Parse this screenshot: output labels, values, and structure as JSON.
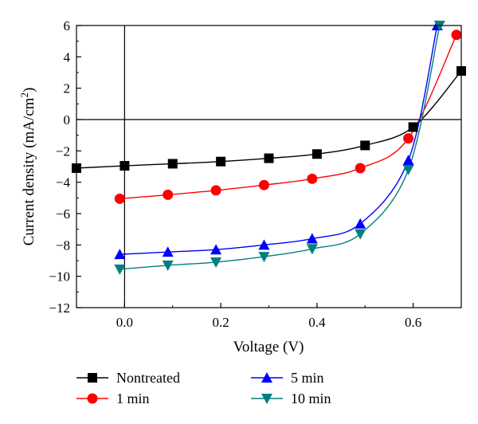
{
  "chart_data": {
    "type": "line",
    "xlabel": "Voltage (V)",
    "ylabel_main": "Current density (mA/cm",
    "ylabel_sup": "2",
    "ylabel_tail": ")",
    "xlim": [
      -0.1,
      0.7
    ],
    "ylim": [
      -12,
      6
    ],
    "xticks": [
      0.0,
      0.2,
      0.4,
      0.6
    ],
    "xtick_labels": [
      "0.0",
      "0.2",
      "0.4",
      "0.6"
    ],
    "yticks": [
      -12,
      -10,
      -8,
      -6,
      -4,
      -2,
      0,
      2,
      4,
      6
    ],
    "ytick_labels": [
      "−12",
      "−10",
      "−8",
      "−6",
      "−4",
      "−2",
      "0",
      "2",
      "4",
      "6"
    ],
    "zero_lines": true,
    "legend_position": "bottom",
    "series": [
      {
        "name": "Nontreated",
        "color": "#000000",
        "marker": "square",
        "x": [
          -0.1,
          0.0,
          0.1,
          0.2,
          0.3,
          0.4,
          0.5,
          0.6,
          0.7
        ],
        "y": [
          -3.1,
          -2.95,
          -2.82,
          -2.68,
          -2.47,
          -2.2,
          -1.65,
          -0.48,
          3.1
        ]
      },
      {
        "name": "1 min",
        "color": "#ff0000",
        "marker": "circle",
        "x": [
          -0.01,
          0.09,
          0.19,
          0.29,
          0.39,
          0.49,
          0.59,
          0.69
        ],
        "y": [
          -5.05,
          -4.8,
          -4.52,
          -4.18,
          -3.78,
          -3.1,
          -1.2,
          5.4
        ]
      },
      {
        "name": "5 min",
        "color": "#0000ff",
        "marker": "triangle-up",
        "x": [
          -0.01,
          0.09,
          0.19,
          0.29,
          0.39,
          0.49,
          0.59,
          0.65
        ],
        "y": [
          -8.6,
          -8.45,
          -8.3,
          -8.0,
          -7.6,
          -6.65,
          -2.6,
          6.0
        ]
      },
      {
        "name": "10 min",
        "color": "#008080",
        "marker": "triangle-down",
        "x": [
          -0.01,
          0.09,
          0.19,
          0.29,
          0.39,
          0.49,
          0.59,
          0.655
        ],
        "y": [
          -9.55,
          -9.3,
          -9.1,
          -8.75,
          -8.25,
          -7.3,
          -3.2,
          6.0
        ]
      }
    ]
  }
}
